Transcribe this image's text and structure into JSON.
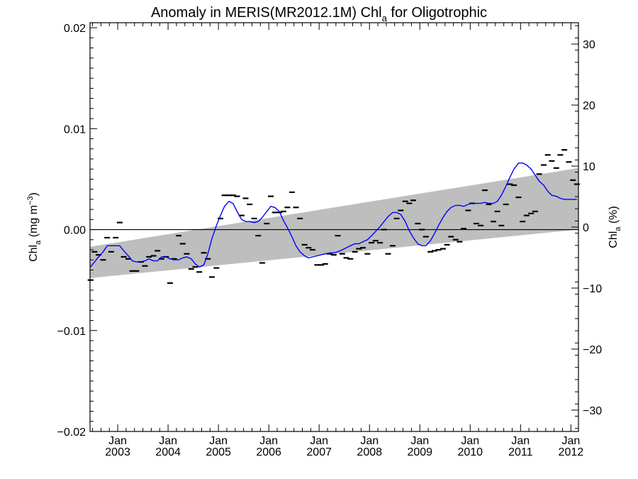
{
  "chart_data": {
    "type": "line",
    "title": "Anomaly in MERIS(MR2012.1M) Chl",
    "title_sub": "a",
    "title_end": " for Oligotrophic",
    "ylabel_left": {
      "main": "Chl",
      "sub": "a",
      "rest": " (mg m",
      "sup": "−3",
      "close": ")"
    },
    "ylabel_right": {
      "main": "Chl",
      "sub": "a",
      "rest": " (%)"
    },
    "ylim_left": [
      -0.02,
      0.0205
    ],
    "ylim_right": [
      -33.5,
      33.5
    ],
    "xlim": [
      2002.45,
      2012.15
    ],
    "left_ticks": [
      {
        "value": 0.02,
        "label": "0.02"
      },
      {
        "value": 0.01,
        "label": "0.01"
      },
      {
        "value": 0.0,
        "label": "0.00"
      },
      {
        "value": -0.01,
        "label": "−0.01"
      },
      {
        "value": -0.02,
        "label": "−0.02"
      }
    ],
    "right_ticks": [
      {
        "value": 30,
        "label": "30"
      },
      {
        "value": 20,
        "label": "20"
      },
      {
        "value": 10,
        "label": "10"
      },
      {
        "value": 0,
        "label": "0"
      },
      {
        "value": -10,
        "label": "−10"
      },
      {
        "value": -20,
        "label": "−20"
      },
      {
        "value": -30,
        "label": "−30"
      }
    ],
    "x_ticks": [
      {
        "value": 2003.0,
        "month": "Jan",
        "year": "2003"
      },
      {
        "value": 2004.0,
        "month": "Jan",
        "year": "2004"
      },
      {
        "value": 2005.0,
        "month": "Jan",
        "year": "2005"
      },
      {
        "value": 2006.0,
        "month": "Jan",
        "year": "2006"
      },
      {
        "value": 2007.0,
        "month": "Jan",
        "year": "2007"
      },
      {
        "value": 2008.0,
        "month": "Jan",
        "year": "2008"
      },
      {
        "value": 2009.0,
        "month": "Jan",
        "year": "2009"
      },
      {
        "value": 2010.0,
        "month": "Jan",
        "year": "2010"
      },
      {
        "value": 2011.0,
        "month": "Jan",
        "year": "2011"
      },
      {
        "value": 2012.0,
        "month": "Jan",
        "year": "2012"
      }
    ],
    "zero_line": 0.0,
    "trend_band": {
      "x": [
        2002.45,
        2012.15
      ],
      "lower": [
        -0.0048,
        0.0
      ],
      "upper": [
        -0.0017,
        0.0061
      ],
      "color": "#bebebe"
    },
    "series": [
      {
        "kind": "points",
        "color": "#000000",
        "x": [
          2002.46,
          2002.54,
          2002.62,
          2002.71,
          2002.79,
          2002.87,
          2002.96,
          2003.04,
          2003.12,
          2003.21,
          2003.29,
          2003.37,
          2003.46,
          2003.54,
          2003.62,
          2003.71,
          2003.79,
          2003.87,
          2003.96,
          2004.04,
          2004.12,
          2004.21,
          2004.29,
          2004.37,
          2004.46,
          2004.54,
          2004.62,
          2004.71,
          2004.79,
          2004.87,
          2004.96,
          2005.04,
          2005.12,
          2005.21,
          2005.29,
          2005.37,
          2005.46,
          2005.54,
          2005.62,
          2005.71,
          2005.79,
          2005.87,
          2005.96,
          2006.04,
          2006.12,
          2006.21,
          2006.29,
          2006.37,
          2006.46,
          2006.54,
          2006.62,
          2006.71,
          2006.79,
          2006.87,
          2006.96,
          2007.04,
          2007.12,
          2007.21,
          2007.29,
          2007.37,
          2007.46,
          2007.54,
          2007.62,
          2007.71,
          2007.79,
          2007.87,
          2007.96,
          2008.04,
          2008.12,
          2008.21,
          2008.29,
          2008.37,
          2008.46,
          2008.54,
          2008.62,
          2008.71,
          2008.79,
          2008.87,
          2008.96,
          2009.04,
          2009.12,
          2009.21,
          2009.29,
          2009.37,
          2009.46,
          2009.54,
          2009.62,
          2009.71,
          2009.79,
          2009.87,
          2009.96,
          2010.04,
          2010.12,
          2010.21,
          2010.29,
          2010.37,
          2010.46,
          2010.54,
          2010.62,
          2010.71,
          2010.79,
          2010.87,
          2010.96,
          2011.04,
          2011.12,
          2011.21,
          2011.29,
          2011.37,
          2011.46,
          2011.54,
          2011.62,
          2011.71,
          2011.79,
          2011.87,
          2011.96,
          2012.04,
          2012.12
        ],
        "y": [
          -0.005,
          -0.0022,
          -0.0025,
          -0.003,
          -0.0008,
          -0.0022,
          -0.0008,
          0.0007,
          -0.0027,
          -0.0029,
          -0.0041,
          -0.0041,
          -0.0032,
          -0.0036,
          -0.0027,
          -0.0026,
          -0.0021,
          -0.0029,
          -0.0027,
          -0.0053,
          -0.0029,
          -0.0006,
          -0.0014,
          -0.0024,
          -0.0039,
          -0.0037,
          -0.0042,
          -0.0023,
          -0.0029,
          -0.0047,
          -0.0038,
          0.0011,
          0.0034,
          0.0034,
          0.0034,
          0.0033,
          0.0014,
          0.0031,
          0.0025,
          0.0011,
          -0.0006,
          -0.0033,
          0.0006,
          0.0033,
          0.0017,
          0.0017,
          0.0018,
          0.0022,
          0.0037,
          0.0022,
          0.0011,
          -0.0015,
          -0.0018,
          -0.002,
          -0.0035,
          -0.0035,
          -0.0034,
          -0.0024,
          -0.0025,
          -0.0006,
          -0.0024,
          -0.0028,
          -0.0029,
          -0.0022,
          -0.0019,
          -0.0018,
          -0.0024,
          -0.0013,
          -0.0011,
          -0.0013,
          0.0,
          -0.0024,
          -0.0016,
          0.0011,
          0.0019,
          0.0028,
          0.0026,
          0.0029,
          0.0006,
          0.0,
          -0.0007,
          -0.0022,
          -0.0021,
          -0.002,
          -0.0019,
          -0.0015,
          -0.0007,
          -0.001,
          -0.0012,
          0.0001,
          0.0019,
          0.0026,
          0.0006,
          0.0004,
          0.0039,
          0.0025,
          0.0008,
          0.0018,
          0.0004,
          0.0025,
          0.0045,
          0.0044,
          0.0032,
          0.0008,
          0.0014,
          0.0016,
          0.0018,
          0.0055,
          0.0064,
          0.0074,
          0.0068,
          0.0061,
          0.0074,
          0.0079,
          0.0067,
          0.0049,
          0.0045
        ]
      },
      {
        "kind": "line",
        "name": "",
        "color": "#0000ff",
        "x": [
          2002.46,
          2002.54,
          2002.62,
          2002.71,
          2002.79,
          2002.87,
          2002.96,
          2003.04,
          2003.12,
          2003.21,
          2003.29,
          2003.37,
          2003.46,
          2003.54,
          2003.62,
          2003.71,
          2003.79,
          2003.87,
          2003.96,
          2004.04,
          2004.12,
          2004.21,
          2004.29,
          2004.37,
          2004.46,
          2004.54,
          2004.62,
          2004.71,
          2004.79,
          2004.87,
          2004.96,
          2005.04,
          2005.12,
          2005.21,
          2005.29,
          2005.37,
          2005.46,
          2005.54,
          2005.62,
          2005.71,
          2005.79,
          2005.87,
          2005.96,
          2006.04,
          2006.12,
          2006.21,
          2006.29,
          2006.37,
          2006.46,
          2006.54,
          2006.62,
          2006.71,
          2006.79,
          2006.87,
          2006.96,
          2007.04,
          2007.12,
          2007.21,
          2007.29,
          2007.37,
          2007.46,
          2007.54,
          2007.62,
          2007.71,
          2007.79,
          2007.87,
          2007.96,
          2008.04,
          2008.12,
          2008.21,
          2008.29,
          2008.37,
          2008.46,
          2008.54,
          2008.62,
          2008.71,
          2008.79,
          2008.87,
          2008.96,
          2009.04,
          2009.12,
          2009.21,
          2009.29,
          2009.37,
          2009.46,
          2009.54,
          2009.62,
          2009.71,
          2009.79,
          2009.87,
          2009.96,
          2010.04,
          2010.12,
          2010.21,
          2010.29,
          2010.37,
          2010.46,
          2010.54,
          2010.62,
          2010.71,
          2010.79,
          2010.87,
          2010.96,
          2011.04,
          2011.12,
          2011.21,
          2011.29,
          2011.37,
          2011.46,
          2011.54,
          2011.62,
          2011.71,
          2011.79,
          2011.87,
          2011.96,
          2012.04,
          2012.12
        ],
        "y": [
          -0.0037,
          -0.0032,
          -0.0027,
          -0.0022,
          -0.0016,
          -0.0016,
          -0.0016,
          -0.0016,
          -0.0021,
          -0.0026,
          -0.0031,
          -0.0032,
          -0.0032,
          -0.0031,
          -0.0029,
          -0.0031,
          -0.0031,
          -0.0027,
          -0.0027,
          -0.0029,
          -0.003,
          -0.003,
          -0.0028,
          -0.0027,
          -0.0029,
          -0.0034,
          -0.0037,
          -0.0035,
          -0.0024,
          -0.0009,
          0.0004,
          0.0014,
          0.0023,
          0.0028,
          0.0026,
          0.0018,
          0.001,
          0.0008,
          0.0008,
          0.0007,
          0.0008,
          0.0012,
          0.0018,
          0.0023,
          0.0022,
          0.0018,
          0.0009,
          0.0002,
          -0.0007,
          -0.0016,
          -0.0022,
          -0.0026,
          -0.0028,
          -0.0027,
          -0.0026,
          -0.0025,
          -0.0024,
          -0.0023,
          -0.0023,
          -0.0022,
          -0.002,
          -0.0018,
          -0.0016,
          -0.0014,
          -0.0014,
          -0.0012,
          -0.001,
          -0.0006,
          -0.0002,
          0.0003,
          0.0008,
          0.0013,
          0.0017,
          0.0017,
          0.0015,
          0.0008,
          -0.0001,
          -0.0008,
          -0.0014,
          -0.0016,
          -0.0016,
          -0.0011,
          -0.0004,
          0.0004,
          0.0012,
          0.0018,
          0.0022,
          0.0024,
          0.0024,
          0.0023,
          0.0025,
          0.0026,
          0.0026,
          0.0026,
          0.0027,
          0.0026,
          0.0026,
          0.0028,
          0.0034,
          0.0043,
          0.0052,
          0.006,
          0.0066,
          0.0066,
          0.0064,
          0.006,
          0.0054,
          0.0048,
          0.0044,
          0.0038,
          0.0034,
          0.0033,
          0.0031,
          0.003,
          0.003,
          0.003,
          0.003
        ]
      }
    ]
  }
}
